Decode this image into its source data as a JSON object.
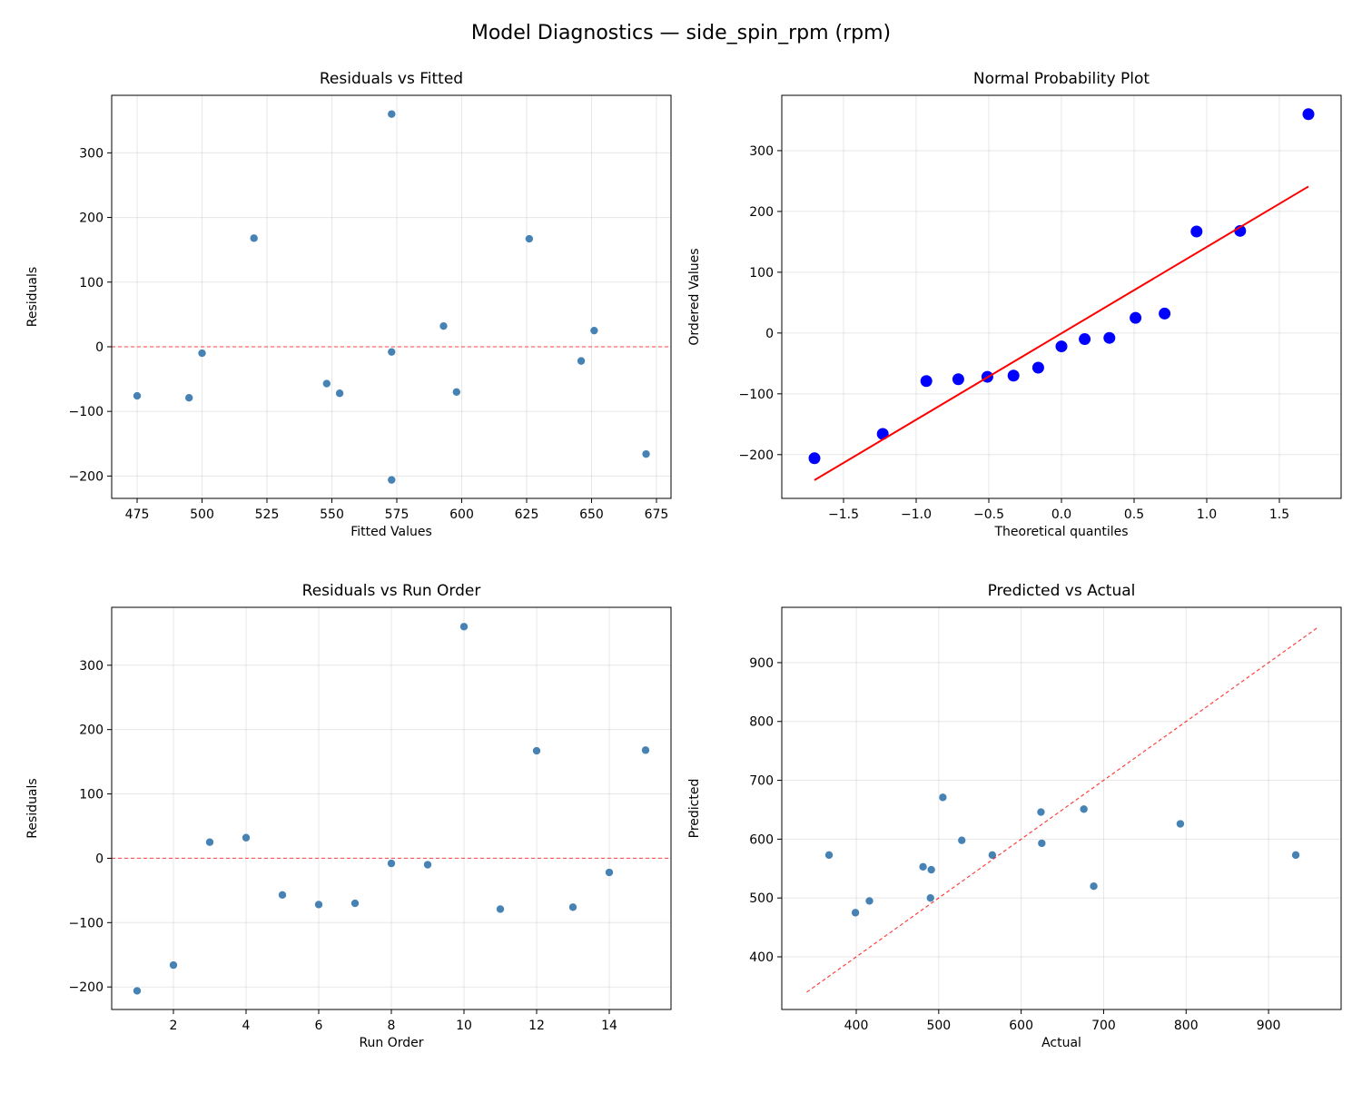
{
  "title": "Model Diagnostics — side_spin_rpm (rpm)",
  "chart_data": [
    {
      "type": "scatter",
      "title": "Residuals vs Fitted",
      "xlabel": "Fitted Values",
      "ylabel": "Residuals",
      "xlim": [
        465.2,
        680.6
      ],
      "ylim": [
        -234.6,
        389
      ],
      "xticks": [
        475,
        500,
        525,
        550,
        575,
        600,
        625,
        650,
        675
      ],
      "yticks": [
        -200,
        -100,
        0,
        100,
        200,
        300
      ],
      "grid": true,
      "point_color": "#4682b4",
      "reference_line": {
        "type": "hline",
        "y": 0,
        "color": "#ff0000",
        "style": "dashed"
      },
      "x": [
        573,
        671,
        651,
        593,
        548,
        553,
        598,
        573,
        500,
        573,
        495,
        626,
        475,
        646,
        520
      ],
      "y": [
        -206,
        -166,
        25,
        32,
        -57,
        -72,
        -70,
        -8,
        -10,
        360,
        -79,
        167,
        -76,
        -22,
        168
      ]
    },
    {
      "type": "scatter",
      "title": "Normal Probability Plot",
      "xlabel": "Theoretical quantiles",
      "ylabel": "Ordered Values",
      "xlim": [
        -1.925,
        1.925
      ],
      "ylim": [
        -272,
        391
      ],
      "xticks": [
        -1.5,
        -1.0,
        -0.5,
        0.0,
        0.5,
        1.0,
        1.5
      ],
      "yticks": [
        -200,
        -100,
        0,
        100,
        200,
        300
      ],
      "grid": true,
      "point_color": "#0000ff",
      "reference_line": {
        "type": "line",
        "x": [
          -1.7,
          1.7
        ],
        "y": [
          -242,
          241
        ],
        "color": "#ff0000",
        "style": "solid"
      },
      "x": [
        -1.7,
        -1.23,
        -0.93,
        -0.71,
        -0.51,
        -0.33,
        -0.16,
        0.0,
        0.16,
        0.33,
        0.51,
        0.71,
        0.93,
        1.23,
        1.7
      ],
      "y": [
        -206,
        -166,
        -79,
        -76,
        -72,
        -70,
        -57,
        -22,
        -10,
        -8,
        25,
        32,
        167,
        168,
        360
      ]
    },
    {
      "type": "scatter",
      "title": "Residuals vs Run Order",
      "xlabel": "Run Order",
      "ylabel": "Residuals",
      "xlim": [
        0.3,
        15.7
      ],
      "ylim": [
        -235,
        390
      ],
      "xticks": [
        2,
        4,
        6,
        8,
        10,
        12,
        14
      ],
      "yticks": [
        -200,
        -100,
        0,
        100,
        200,
        300
      ],
      "grid": true,
      "point_color": "#4682b4",
      "reference_line": {
        "type": "hline",
        "y": 0,
        "color": "#ff0000",
        "style": "dashed"
      },
      "x": [
        1,
        2,
        3,
        4,
        5,
        6,
        7,
        8,
        9,
        10,
        11,
        12,
        13,
        14,
        15
      ],
      "y": [
        -206,
        -166,
        25,
        32,
        -57,
        -72,
        -70,
        -8,
        -10,
        360,
        -79,
        167,
        -76,
        -22,
        168
      ]
    },
    {
      "type": "scatter",
      "title": "Predicted vs Actual",
      "xlabel": "Actual",
      "ylabel": "Predicted",
      "xlim": [
        309.7,
        988
      ],
      "ylim": [
        310.5,
        994
      ],
      "xticks": [
        400,
        500,
        600,
        700,
        800,
        900
      ],
      "yticks": [
        400,
        500,
        600,
        700,
        800,
        900
      ],
      "grid": true,
      "point_color": "#4682b4",
      "reference_line": {
        "type": "line",
        "x": [
          340,
          960
        ],
        "y": [
          340,
          960
        ],
        "color": "#ff0000",
        "style": "dashed"
      },
      "x": [
        367,
        505,
        676,
        625,
        491,
        481,
        528,
        565,
        490,
        933,
        416,
        793,
        399,
        624,
        688
      ],
      "y": [
        573,
        671,
        651,
        593,
        548,
        553,
        598,
        573,
        500,
        573,
        495,
        626,
        475,
        646,
        520
      ]
    }
  ]
}
